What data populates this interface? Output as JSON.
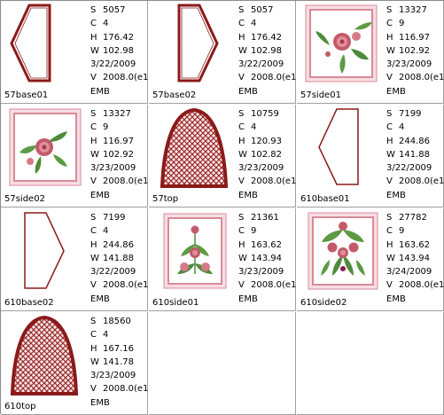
{
  "items": [
    {
      "name": "57base01",
      "icon": "hexagon-outline-icon",
      "S": "5057",
      "C": "4",
      "H": "176.42",
      "W": "102.98",
      "date": "3/22/2009",
      "V": "2008.0(e1",
      "fmt": "EMB"
    },
    {
      "name": "57base02",
      "icon": "hexagon-outline-mirrored-icon",
      "S": "5057",
      "C": "4",
      "H": "176.42",
      "W": "102.98",
      "date": "3/22/2009",
      "V": "2008.0(e1",
      "fmt": "EMB"
    },
    {
      "name": "57side01",
      "icon": "rose-frame-icon",
      "S": "13327",
      "C": "9",
      "H": "116.97",
      "W": "102.92",
      "date": "3/23/2009",
      "V": "2008.0(e1",
      "fmt": "EMB"
    },
    {
      "name": "57side02",
      "icon": "rose-frame-icon",
      "S": "13327",
      "C": "9",
      "H": "116.97",
      "W": "102.92",
      "date": "3/23/2009",
      "V": "2008.0(e1",
      "fmt": "EMB"
    },
    {
      "name": "57top",
      "icon": "arch-lattice-icon",
      "S": "10759",
      "C": "4",
      "H": "120.93",
      "W": "102.82",
      "date": "3/23/2009",
      "V": "2008.0(e1",
      "fmt": "EMB"
    },
    {
      "name": "610base01",
      "icon": "hexagon-outline-icon",
      "S": "7199",
      "C": "4",
      "H": "244.86",
      "W": "141.88",
      "date": "3/22/2009",
      "V": "2008.0(e1",
      "fmt": "EMB"
    },
    {
      "name": "610base02",
      "icon": "hexagon-outline-mirrored-icon",
      "S": "7199",
      "C": "4",
      "H": "244.86",
      "W": "141.88",
      "date": "3/22/2009",
      "V": "2008.0(e1",
      "fmt": "EMB"
    },
    {
      "name": "610side01",
      "icon": "rose-vine-frame-icon",
      "S": "21361",
      "C": "9",
      "H": "163.62",
      "W": "143.94",
      "date": "3/23/2009",
      "V": "2008.0(e1",
      "fmt": "EMB"
    },
    {
      "name": "610side02",
      "icon": "rose-bouquet-frame-icon",
      "S": "27782",
      "C": "9",
      "H": "163.62",
      "W": "143.94",
      "date": "3/24/2009",
      "V": "2008.0(e1",
      "fmt": "EMB"
    },
    {
      "name": "610top",
      "icon": "arch-lattice-icon",
      "S": "18560",
      "C": "4",
      "H": "167.16",
      "W": "141.78",
      "date": "3/23/2009",
      "V": "2008.0(e1",
      "fmt": "EMB"
    }
  ],
  "labels": {
    "S": "S",
    "C": "C",
    "H": "H",
    "W": "W",
    "V": "V"
  },
  "colors": {
    "outline": "#8b1a1a",
    "lattice": "#9a2a2a",
    "frame": "#d98a9a",
    "rose": "#c25a6a",
    "leaf": "#4e8a3a"
  }
}
